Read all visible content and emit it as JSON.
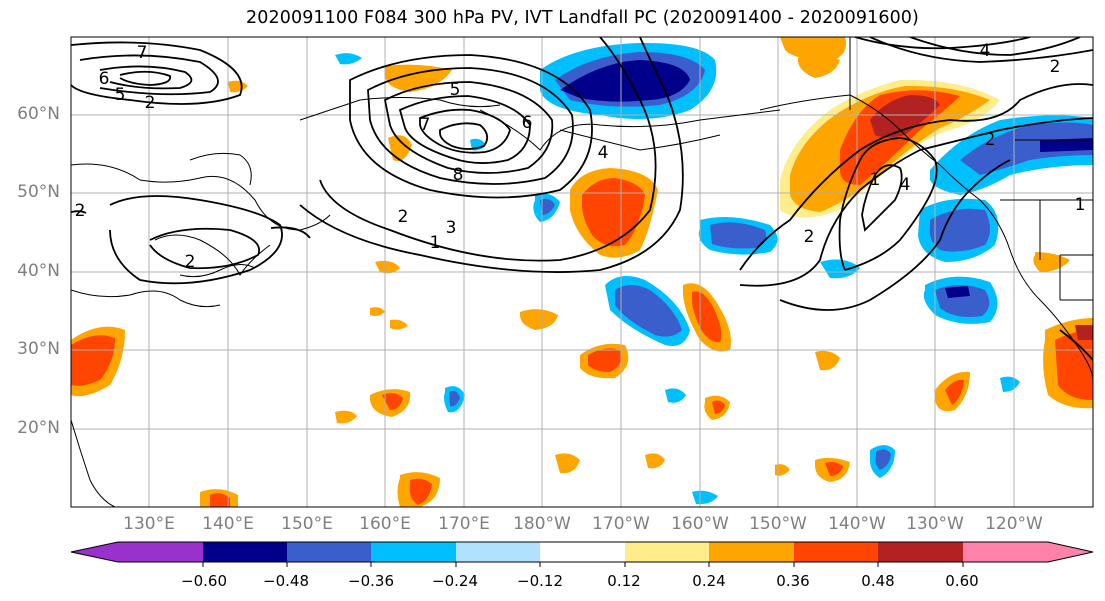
{
  "title": "2020091100 F084 300 hPa PV, IVT Landfall PC (2020091400 - 2020091600)",
  "latitude_labels": [
    "60°N",
    "50°N",
    "40°N",
    "30°N",
    "20°N"
  ],
  "longitude_labels": [
    "130°E",
    "140°E",
    "150°E",
    "160°E",
    "170°E",
    "180°W",
    "170°W",
    "160°W",
    "150°W",
    "140°W",
    "130°W",
    "120°W"
  ],
  "contour_labels": [
    "7",
    "6",
    "5",
    "2",
    "5",
    "7",
    "6",
    "8",
    "2",
    "3",
    "1",
    "2",
    "4",
    "2",
    "4",
    "1",
    "2",
    "1",
    "2",
    "4",
    "2"
  ],
  "colorbar": {
    "tick_labels": [
      "−0.60",
      "−0.48",
      "−0.36",
      "−0.24",
      "−0.12",
      "0.12",
      "0.24",
      "0.36",
      "0.48",
      "0.60"
    ],
    "colors": [
      "#9932CC",
      "#00008B",
      "#3A5FCD",
      "#00BFFF",
      "#B0E2FF",
      "#FFFFFF",
      "#FFEC8B",
      "#FFA500",
      "#FF4500",
      "#B22222",
      "#FF82AB"
    ]
  }
}
